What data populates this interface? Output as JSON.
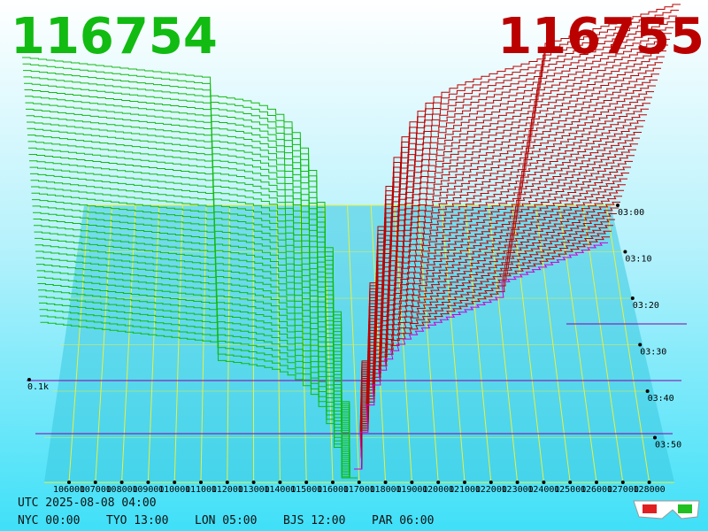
{
  "header": {
    "bid": "116754",
    "ask": "116755"
  },
  "price_axis": {
    "labels": [
      106000,
      107000,
      108000,
      109000,
      110000,
      111000,
      112000,
      113000,
      114000,
      115000,
      116000,
      117000,
      118000,
      119000,
      120000,
      121000,
      122000,
      123000,
      124000,
      125000,
      126000,
      127000,
      128000
    ]
  },
  "depth_axis": {
    "label": "0.1k"
  },
  "time_axis": {
    "labels": [
      "03:00",
      "03:10",
      "03:20",
      "03:30",
      "03:40",
      "03:50"
    ]
  },
  "footer": {
    "utc": "UTC 2025-08-08 04:00",
    "clocks": [
      "NYC 00:00",
      "TYO 13:00",
      "LON 05:00",
      "BJS 12:00",
      "PAR 06:00"
    ]
  }
}
